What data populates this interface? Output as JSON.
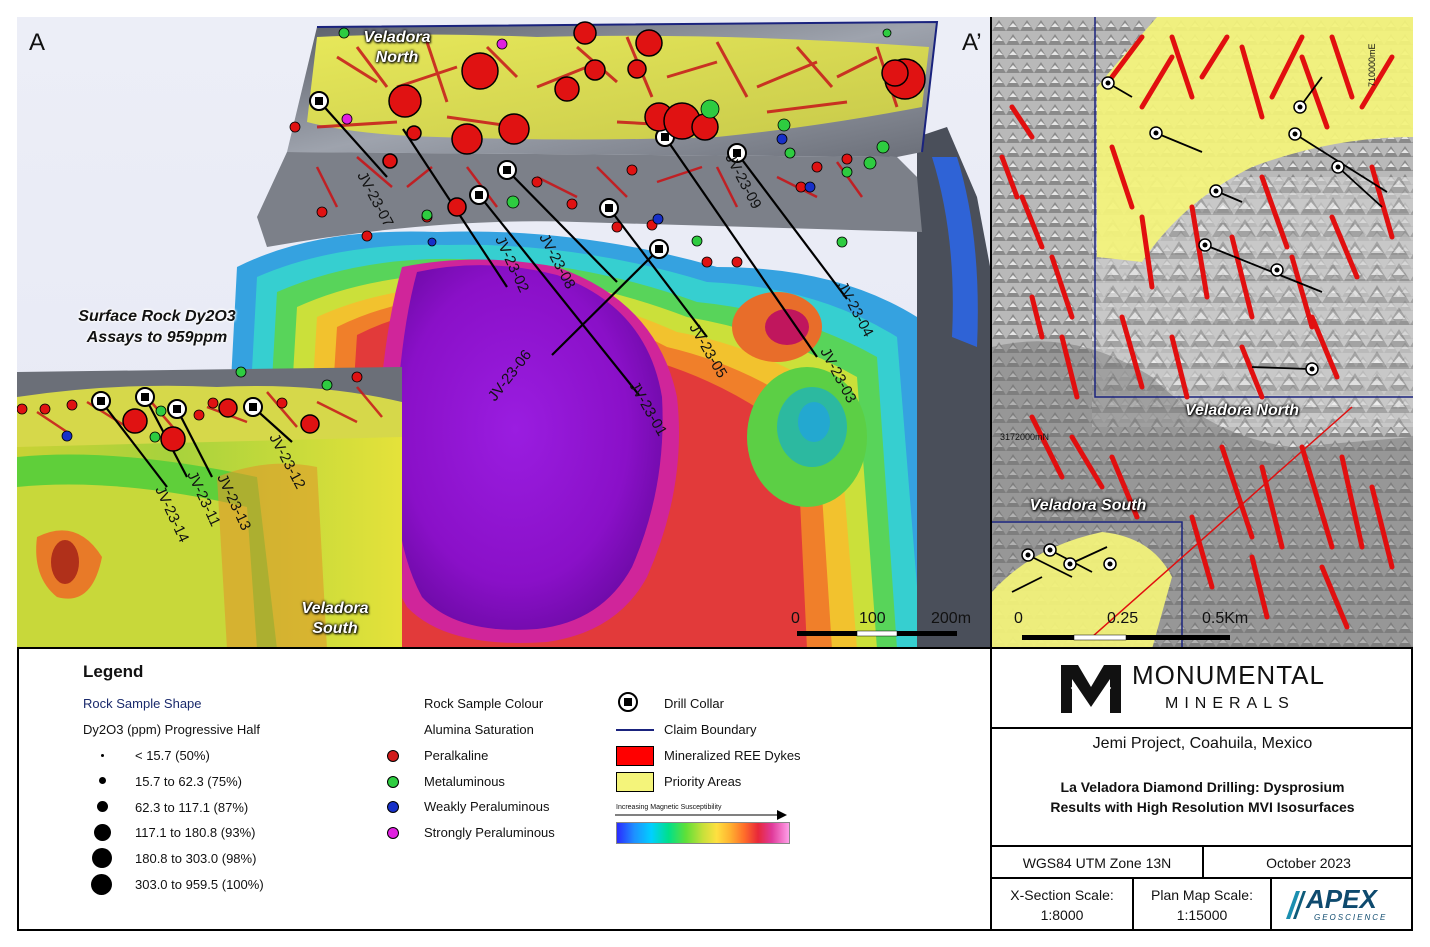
{
  "section": {
    "corner_left": "A",
    "corner_right": "A’",
    "label_north": "Veladora North",
    "label_south": "Veladora South",
    "assay_note_line1": "Surface Rock Dy2O3",
    "assay_note_line2": "Assays to 959ppm",
    "drillholes": [
      "JV-23-07",
      "JV-23-02",
      "JV-23-08",
      "JV-23-06",
      "JV-23-01",
      "JV-23-05",
      "JV-23-09",
      "JV-23-04",
      "JV-23-03",
      "JV-23-14",
      "JV-23-11",
      "JV-23-13",
      "JV-23-12"
    ],
    "scale_labels": [
      "0",
      "100",
      "200m"
    ]
  },
  "planmap": {
    "grid_label_e": "710000mE",
    "grid_label_n": "3172000mN",
    "label_north": "Veladora North",
    "label_south": "Veladora South",
    "scale_labels": [
      "0",
      "0.25",
      "0.5Km"
    ]
  },
  "legend": {
    "title": "Legend",
    "shape_head1": "Rock Sample Shape",
    "shape_head2": "Dy2O3 (ppm) Progressive Half",
    "shape_items": [
      "< 15.7 (50%)",
      "15.7 to 62.3 (75%)",
      "62.3 to 117.1 (87%)",
      "117.1 to 180.8 (93%)",
      "180.8 to 303.0 (98%)",
      "303.0 to 959.5 (100%)"
    ],
    "colour_head1": "Rock Sample Colour",
    "colour_head2": "Alumina Saturation",
    "colour_items": [
      {
        "label": "Peralkaline",
        "color": "#d11a1a"
      },
      {
        "label": "Metaluminous",
        "color": "#2ecc40"
      },
      {
        "label": "Weakly Peraluminous",
        "color": "#1730c8"
      },
      {
        "label": "Strongly Peraluminous",
        "color": "#e020e0"
      }
    ],
    "symbol_items": [
      "Drill Collar",
      "Claim Boundary",
      "Mineralized REE Dykes",
      "Priority Areas"
    ],
    "mag_label": "Increasing Magnetic Susceptibility"
  },
  "titleblock": {
    "company_line1": "MONUMENTAL",
    "company_line2": "MINERALS",
    "project": "Jemi Project, Coahuila, Mexico",
    "title_line1": "La Veladora Diamond Drilling: Dysprosium",
    "title_line2": "Results with High Resolution MVI Isosurfaces",
    "datum": "WGS84 UTM Zone 13N",
    "date": "October 2023",
    "xsec_label": "X-Section Scale:",
    "xsec_value": "1:8000",
    "plan_label": "Plan Map Scale:",
    "plan_value": "1:15000",
    "apex_logo": "APEX",
    "apex_sub": "GEOSCIENCE"
  },
  "colors": {
    "peralkaline": "#d11a1a",
    "metaluminous": "#2ecc40",
    "weakly": "#1730c8",
    "strongly": "#e020e0",
    "dykes": "#ff0000",
    "priority": "#f4f47a",
    "claim": "#1a237e"
  }
}
